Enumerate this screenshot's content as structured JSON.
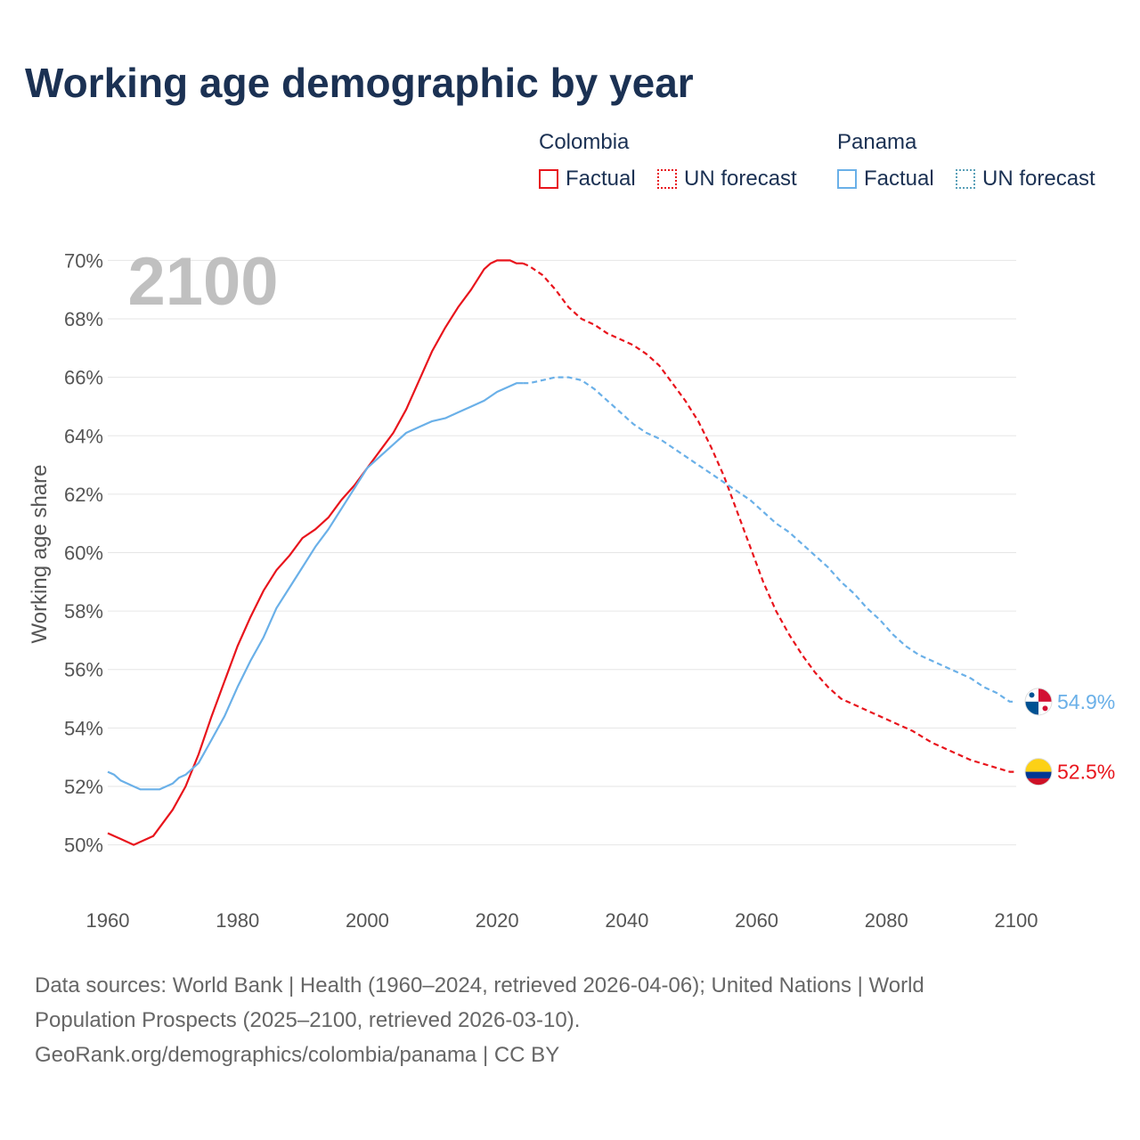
{
  "title": "Working age demographic by year",
  "year_watermark": "2100",
  "legend": {
    "colombia": {
      "name": "Colombia",
      "factual": "Factual",
      "forecast": "UN forecast"
    },
    "panama": {
      "name": "Panama",
      "factual": "Factual",
      "forecast": "UN forecast"
    }
  },
  "colors": {
    "colombia": "#e8141c",
    "panama": "#6ab0e8",
    "title": "#1b3153"
  },
  "footer": {
    "line1": "Data sources: World Bank | Health (1960–2024, retrieved 2026-04-06); United Nations | World",
    "line2": "Population Prospects (2025–2100, retrieved 2026-03-10).",
    "line3": "GeoRank.org/demographics/colombia/panama | CC BY"
  },
  "chart_data": {
    "type": "line",
    "title": "Working age demographic by year",
    "ylabel": "Working age share",
    "xlabel": "",
    "xlim": [
      1960,
      2100
    ],
    "ylim": [
      49.5,
      70.5
    ],
    "xticks": [
      1960,
      1980,
      2000,
      2020,
      2040,
      2060,
      2080,
      2100
    ],
    "xtick_labels": [
      "1960",
      "1980",
      "2000",
      "2020",
      "2040",
      "2060",
      "2080",
      "2100"
    ],
    "yticks": [
      50,
      52,
      54,
      56,
      58,
      60,
      62,
      64,
      66,
      68,
      70
    ],
    "ytick_labels": [
      "50%",
      "52%",
      "54%",
      "56%",
      "58%",
      "60%",
      "62%",
      "64%",
      "66%",
      "68%",
      "70%"
    ],
    "factual_end_year": 2024,
    "series": [
      {
        "name": "Colombia",
        "end_label": "52.5%",
        "x": [
          1960,
          1962,
          1964,
          1967,
          1970,
          1972,
          1974,
          1976,
          1978,
          1980,
          1982,
          1984,
          1986,
          1988,
          1990,
          1992,
          1994,
          1996,
          1998,
          2000,
          2002,
          2004,
          2006,
          2008,
          2010,
          2012,
          2014,
          2016,
          2018,
          2019,
          2020,
          2021,
          2022,
          2023,
          2024,
          2025,
          2027,
          2029,
          2031,
          2033,
          2035,
          2037,
          2039,
          2041,
          2043,
          2045,
          2047,
          2049,
          2051,
          2053,
          2055,
          2057,
          2059,
          2061,
          2063,
          2065,
          2067,
          2069,
          2071,
          2073,
          2075,
          2078,
          2081,
          2084,
          2087,
          2090,
          2093,
          2096,
          2099,
          2100
        ],
        "values": [
          50.4,
          50.2,
          50.0,
          50.3,
          51.2,
          52.0,
          53.1,
          54.4,
          55.6,
          56.8,
          57.8,
          58.7,
          59.4,
          59.9,
          60.5,
          60.8,
          61.2,
          61.8,
          62.3,
          62.9,
          63.5,
          64.1,
          64.9,
          65.9,
          66.9,
          67.7,
          68.4,
          69.0,
          69.7,
          69.9,
          70.0,
          70.0,
          70.0,
          69.9,
          69.9,
          69.8,
          69.5,
          69.0,
          68.4,
          68.0,
          67.8,
          67.5,
          67.3,
          67.1,
          66.8,
          66.4,
          65.8,
          65.2,
          64.5,
          63.6,
          62.6,
          61.4,
          60.2,
          59.0,
          58.0,
          57.2,
          56.5,
          55.9,
          55.4,
          55.0,
          54.8,
          54.5,
          54.2,
          53.9,
          53.5,
          53.2,
          52.9,
          52.7,
          52.5,
          52.5
        ]
      },
      {
        "name": "Panama",
        "end_label": "54.9%",
        "x": [
          1960,
          1961,
          1962,
          1964,
          1965,
          1968,
          1970,
          1971,
          1972,
          1974,
          1976,
          1978,
          1980,
          1982,
          1984,
          1986,
          1988,
          1990,
          1992,
          1994,
          1996,
          1998,
          2000,
          2002,
          2004,
          2006,
          2008,
          2010,
          2012,
          2014,
          2016,
          2018,
          2020,
          2021,
          2022,
          2023,
          2024,
          2025,
          2027,
          2029,
          2031,
          2033,
          2035,
          2037,
          2039,
          2041,
          2043,
          2045,
          2047,
          2049,
          2051,
          2053,
          2055,
          2057,
          2059,
          2061,
          2063,
          2065,
          2067,
          2069,
          2071,
          2073,
          2075,
          2077,
          2079,
          2081,
          2083,
          2085,
          2087,
          2089,
          2091,
          2093,
          2095,
          2097,
          2099,
          2100
        ],
        "values": [
          52.5,
          52.4,
          52.2,
          52.0,
          51.9,
          51.9,
          52.1,
          52.3,
          52.4,
          52.8,
          53.6,
          54.4,
          55.4,
          56.3,
          57.1,
          58.1,
          58.8,
          59.5,
          60.2,
          60.8,
          61.5,
          62.2,
          62.9,
          63.3,
          63.7,
          64.1,
          64.3,
          64.5,
          64.6,
          64.8,
          65.0,
          65.2,
          65.5,
          65.6,
          65.7,
          65.8,
          65.8,
          65.8,
          65.9,
          66.0,
          66.0,
          65.9,
          65.6,
          65.2,
          64.8,
          64.4,
          64.1,
          63.9,
          63.6,
          63.3,
          63.0,
          62.7,
          62.4,
          62.1,
          61.8,
          61.4,
          61.0,
          60.7,
          60.3,
          59.9,
          59.5,
          59.0,
          58.6,
          58.1,
          57.7,
          57.2,
          56.8,
          56.5,
          56.3,
          56.1,
          55.9,
          55.7,
          55.4,
          55.2,
          54.9,
          54.9
        ]
      }
    ]
  }
}
